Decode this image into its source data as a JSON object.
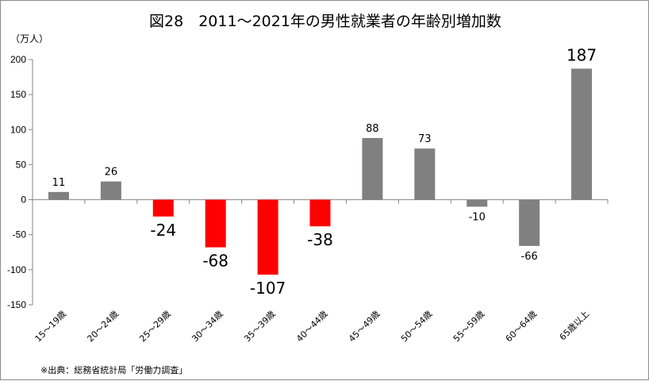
{
  "chart_data": {
    "type": "bar",
    "title": "図28　2011～2021年の男性就業者の年齢別増加数",
    "ylabel": "（万人）",
    "xlabel": "",
    "ylim": [
      -150,
      200
    ],
    "yticks": [
      200,
      150,
      100,
      50,
      0,
      -50,
      -100,
      -150
    ],
    "grid": false,
    "categories": [
      "15～19歳",
      "20～24歳",
      "25～29歳",
      "30～34歳",
      "35～39歳",
      "40～44歳",
      "45～49歳",
      "50～54歳",
      "55～59歳",
      "60～64歳",
      "65歳以上"
    ],
    "values": [
      11,
      26,
      -24,
      -68,
      -107,
      -38,
      88,
      73,
      -10,
      -66,
      187
    ],
    "data_labels": [
      "11",
      "26",
      "-24",
      "-68",
      "-107",
      "-38",
      "88",
      "73",
      "-10",
      "-66",
      "187"
    ],
    "bar_colors": [
      "#808080",
      "#808080",
      "#ff0000",
      "#ff0000",
      "#ff0000",
      "#ff0000",
      "#808080",
      "#808080",
      "#808080",
      "#808080",
      "#808080"
    ],
    "label_emphasis": [
      false,
      false,
      true,
      true,
      true,
      true,
      false,
      false,
      false,
      false,
      true
    ]
  },
  "source_note": "※出典：総務省統計局「労働力調査」",
  "colors": {
    "gray": "#808080",
    "red": "#ff0000",
    "axis": "#868686"
  }
}
